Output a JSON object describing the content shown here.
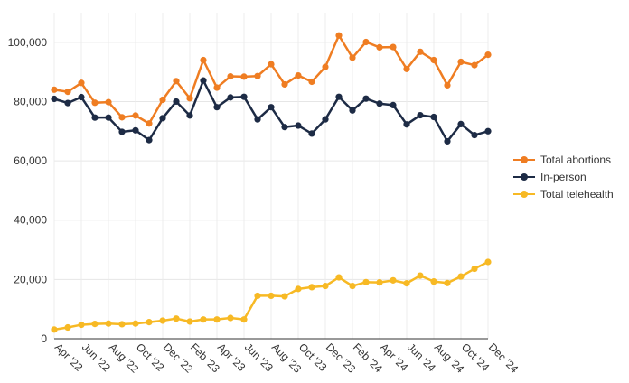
{
  "chart_data": {
    "type": "line",
    "title": "",
    "xlabel": "",
    "ylabel": "",
    "ylim": [
      0,
      110000
    ],
    "yticks": [
      0,
      20000,
      40000,
      60000,
      80000,
      100000
    ],
    "ytick_labels": [
      "0",
      "20,000",
      "40,000",
      "60,000",
      "80,000",
      "100,000"
    ],
    "grid": true,
    "legend_position": "right",
    "x": [
      "Apr '22",
      "May '22",
      "Jun '22",
      "Jul '22",
      "Aug '22",
      "Sep '22",
      "Oct '22",
      "Nov '22",
      "Dec '22",
      "Jan '23",
      "Feb '23",
      "Mar '23",
      "Apr '23",
      "May '23",
      "Jun '23",
      "Jul '23",
      "Aug '23",
      "Sep '23",
      "Oct '23",
      "Nov '23",
      "Dec '23",
      "Jan '24",
      "Feb '24",
      "Mar '24",
      "Apr '24",
      "May '24",
      "Jun '24",
      "Jul '24",
      "Aug '24",
      "Sep '24",
      "Oct '24",
      "Nov '24",
      "Dec '24"
    ],
    "x_tick_labels": [
      "Apr '22",
      "Jun '22",
      "Aug '22",
      "Oct '22",
      "Dec '22",
      "Feb '23",
      "Apr '23",
      "Jun '23",
      "Aug '23",
      "Oct '23",
      "Dec '23",
      "Feb '24",
      "Apr '24",
      "Jun '24",
      "Aug '24",
      "Oct '24",
      "Dec '24"
    ],
    "series": [
      {
        "name": "Total abortions",
        "color": "#ef7d22",
        "values": [
          84000,
          83300,
          86300,
          79600,
          79800,
          74700,
          75300,
          72600,
          80600,
          86900,
          81100,
          94000,
          84700,
          88500,
          88400,
          88600,
          92600,
          85800,
          88800,
          86700,
          91700,
          102300,
          94800,
          100100,
          98300,
          98400,
          91000,
          96800,
          94000,
          85500,
          93400,
          92300,
          95800
        ]
      },
      {
        "name": "In-person",
        "color": "#1d2b45",
        "values": [
          80900,
          79500,
          81500,
          74600,
          74600,
          69800,
          70300,
          67000,
          74400,
          80000,
          75300,
          87100,
          78100,
          81400,
          81600,
          74000,
          78100,
          71400,
          71900,
          69200,
          74000,
          81600,
          77000,
          81000,
          79300,
          78800,
          72300,
          75400,
          74800,
          66600,
          72400,
          68700,
          70000
        ]
      },
      {
        "name": "Total telehealth",
        "color": "#f7b924",
        "values": [
          3100,
          3800,
          4700,
          5000,
          5100,
          4900,
          5100,
          5600,
          6100,
          6800,
          5800,
          6500,
          6500,
          7000,
          6500,
          14500,
          14500,
          14300,
          16800,
          17400,
          17800,
          20700,
          17800,
          19100,
          19000,
          19700,
          18700,
          21300,
          19300,
          18800,
          21000,
          23600,
          25900
        ]
      }
    ]
  }
}
